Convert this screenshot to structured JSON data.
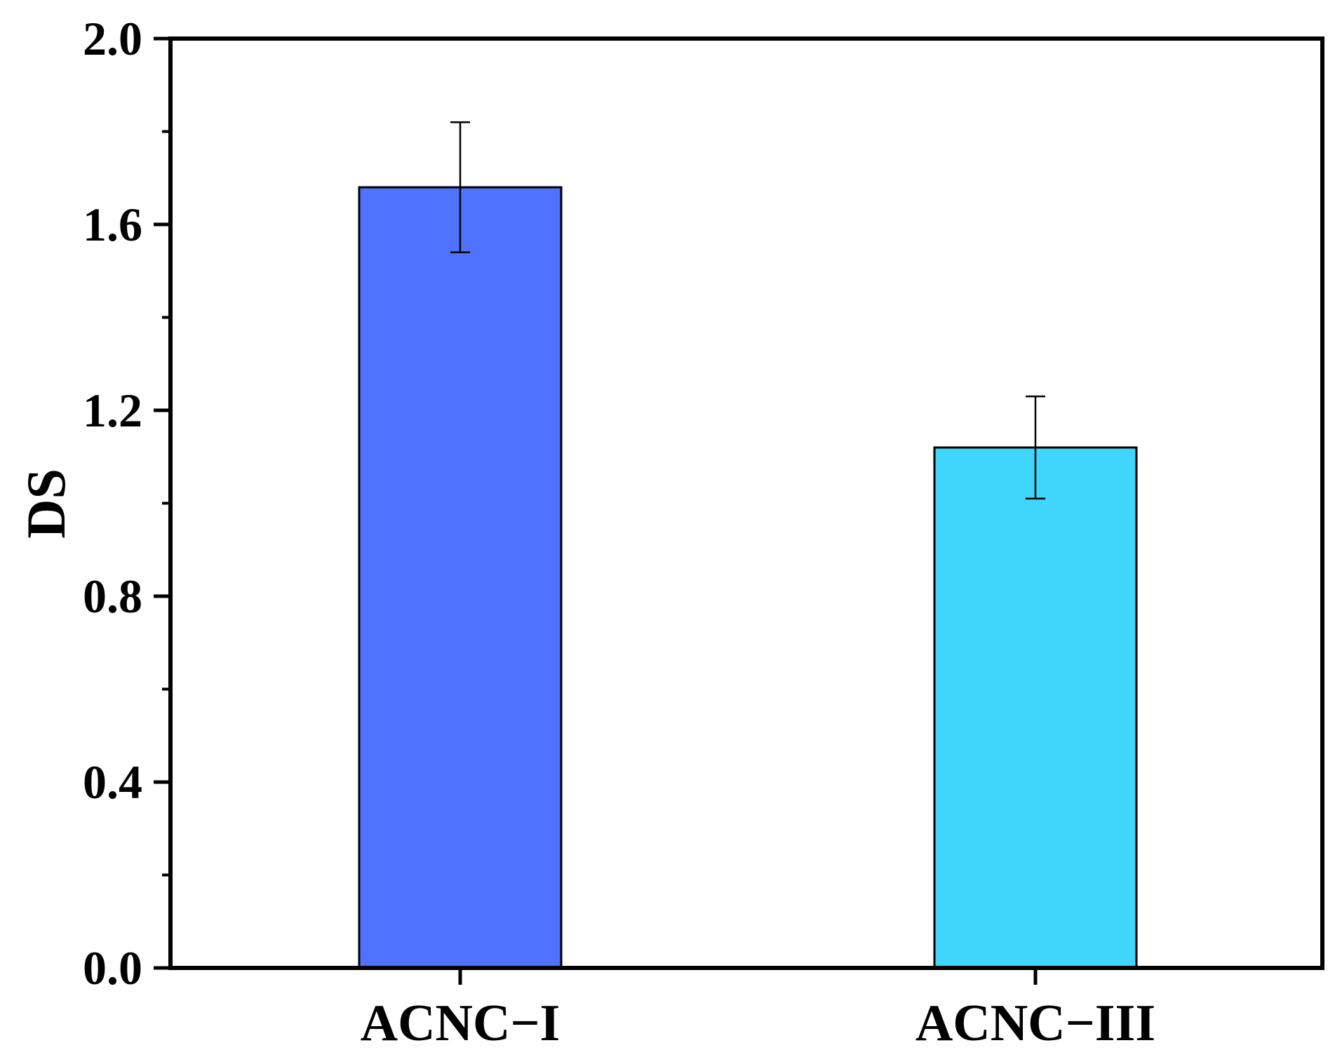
{
  "chart_data": {
    "type": "bar",
    "title": "",
    "xlabel": "",
    "ylabel": "DS",
    "categories": [
      "ACNC−I",
      "ACNC−III"
    ],
    "values": [
      1.68,
      1.12
    ],
    "error": [
      0.14,
      0.11
    ],
    "ylim": [
      0.0,
      2.0
    ],
    "yticks": [
      "0.0",
      "0.4",
      "0.8",
      "1.2",
      "1.6",
      "2.0"
    ],
    "colors": [
      "#4F72FF",
      "#40D5FB"
    ],
    "grid": false,
    "legend": "none"
  }
}
